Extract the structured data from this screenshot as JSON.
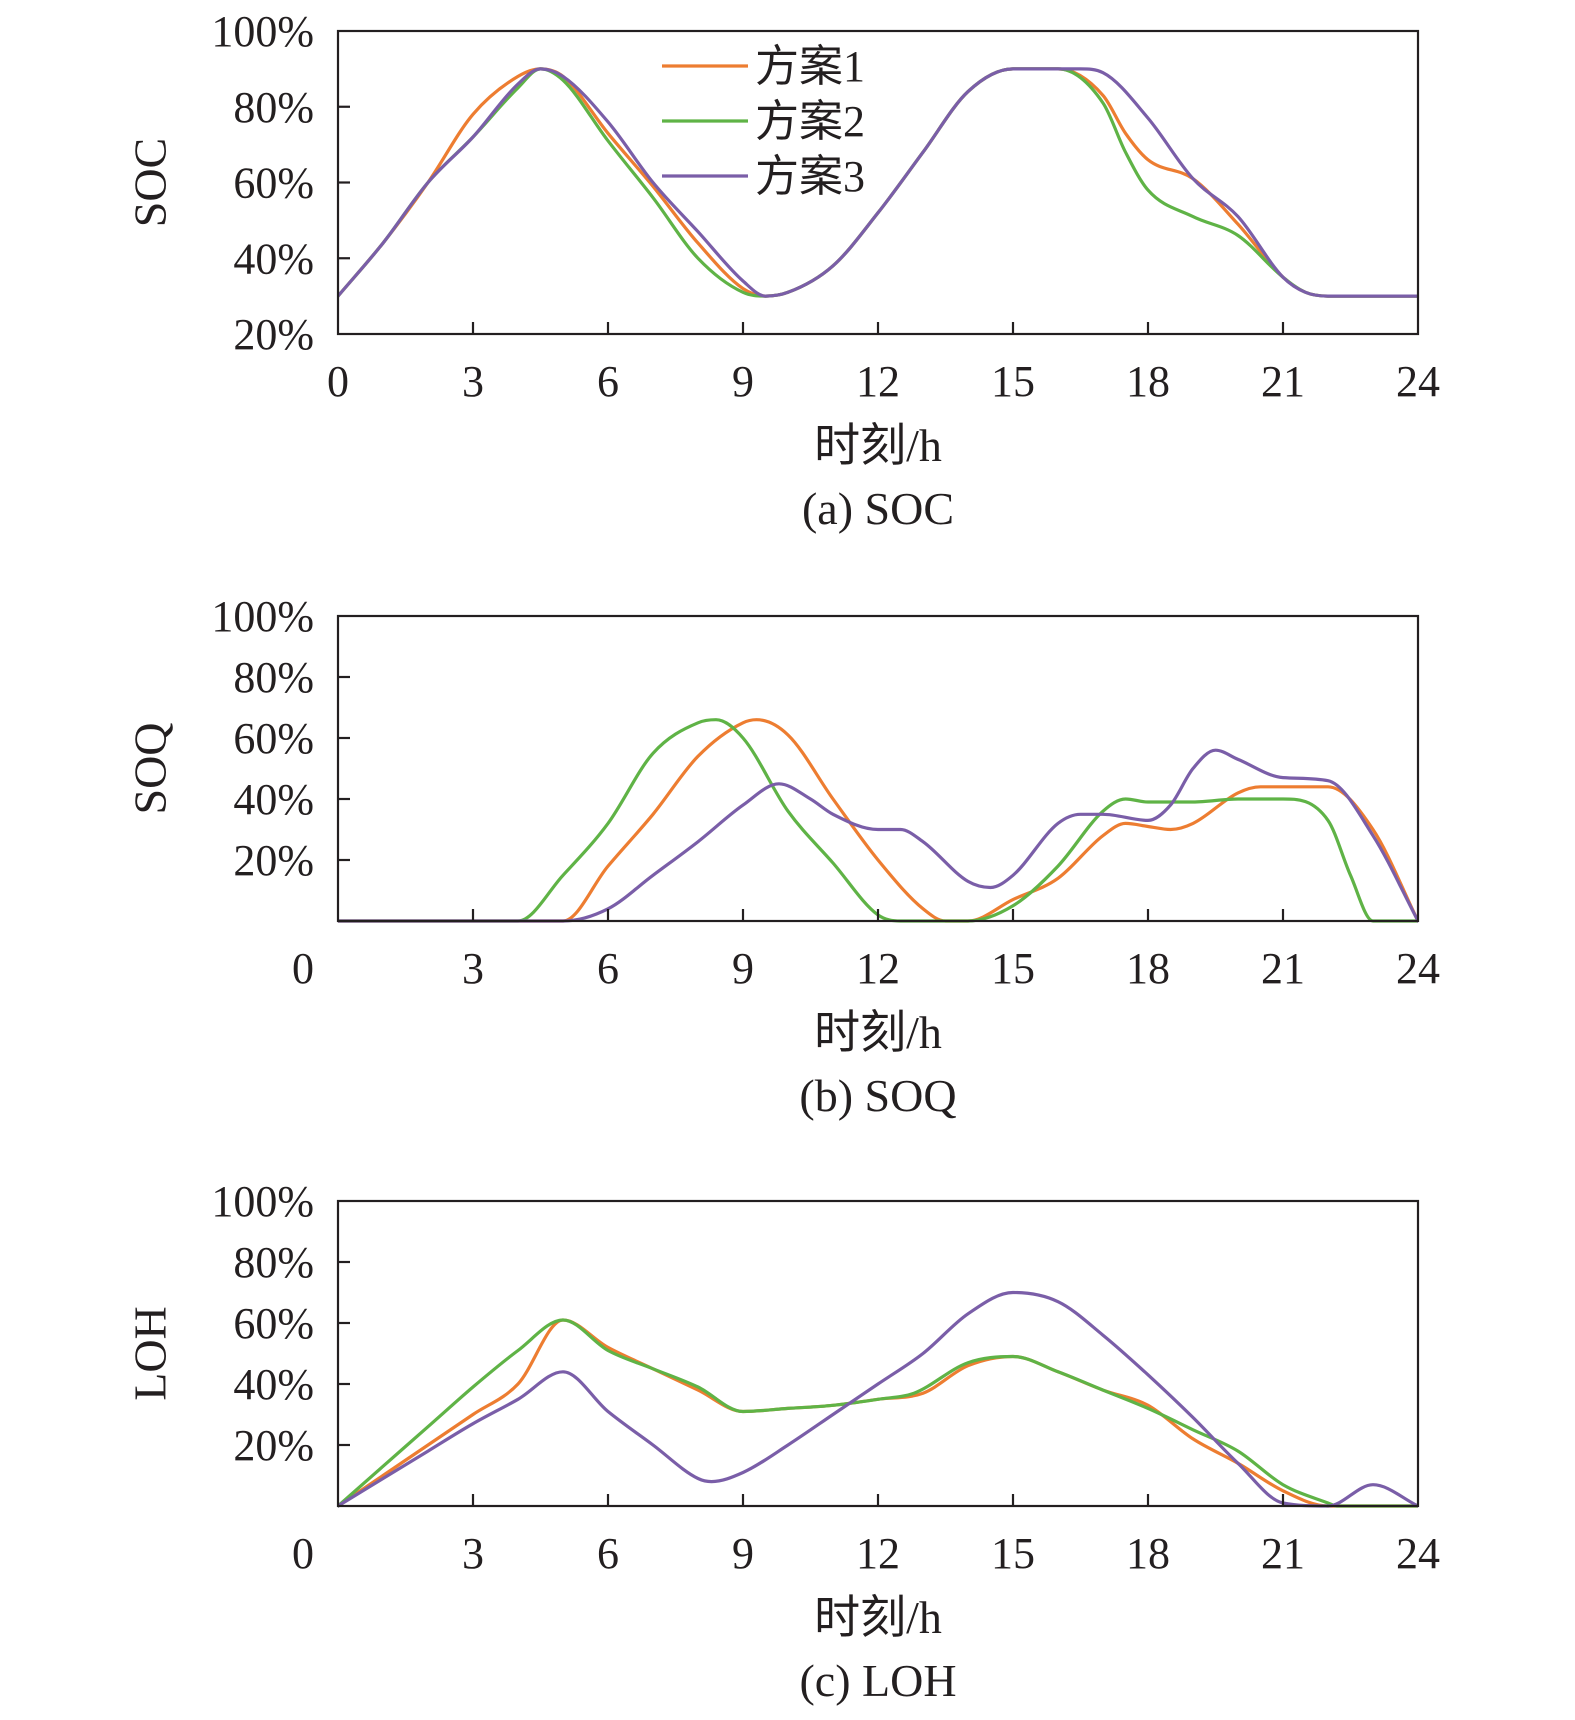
{
  "chart_data": [
    {
      "type": "line",
      "caption": "(a) SOC",
      "xlabel": "时刻/h",
      "ylabel": "SOC",
      "xlim": [
        0,
        24
      ],
      "ylim": [
        20,
        100
      ],
      "x_ticks": [
        "0",
        "3",
        "6",
        "9",
        "12",
        "15",
        "18",
        "21",
        "24"
      ],
      "y_ticks": [
        "20%",
        "40%",
        "60%",
        "80%",
        "100%"
      ],
      "legend": [
        "方案1",
        "方案2",
        "方案3"
      ],
      "legend_position": "top-center",
      "grid": false,
      "series": [
        {
          "name": "方案1",
          "color": "#ed7d31",
          "x": [
            0,
            1,
            2,
            3,
            4,
            4.5,
            5,
            6,
            7,
            8,
            9,
            9.5,
            10,
            11,
            12,
            13,
            14,
            15,
            16,
            17,
            17.5,
            18,
            19,
            20,
            21,
            21.5,
            22,
            23,
            24
          ],
          "values": [
            30,
            44,
            60,
            78,
            88,
            90,
            88,
            73,
            59,
            44,
            32,
            30,
            31,
            38,
            52,
            68,
            84,
            90,
            90,
            83,
            73,
            66,
            61,
            49,
            35,
            31,
            30,
            30,
            30
          ]
        },
        {
          "name": "方案2",
          "color": "#5fb346",
          "x": [
            0,
            1,
            2,
            3,
            4,
            4.5,
            5,
            6,
            7,
            8,
            9,
            9.5,
            10,
            11,
            12,
            13,
            14,
            15,
            16,
            17,
            17.5,
            18,
            19,
            20,
            21,
            21.5,
            22,
            23,
            24
          ],
          "values": [
            30,
            44,
            60,
            72,
            85,
            90,
            87,
            71,
            56,
            40,
            31,
            30,
            31,
            38,
            52,
            68,
            84,
            90,
            90,
            81,
            68,
            58,
            51,
            46,
            35,
            31,
            30,
            30,
            30
          ]
        },
        {
          "name": "方案3",
          "color": "#7a5ea8",
          "x": [
            0,
            1,
            2,
            3,
            4,
            4.5,
            5,
            6,
            7,
            8,
            9,
            9.5,
            10,
            11,
            12,
            13,
            14,
            15,
            16,
            16.5,
            17,
            18,
            19,
            20,
            21,
            21.5,
            22,
            23,
            24
          ],
          "values": [
            30,
            44,
            60,
            72,
            86,
            90,
            88,
            76,
            60,
            47,
            34,
            30,
            31,
            38,
            52,
            68,
            84,
            90,
            90,
            90,
            89,
            77,
            61,
            51,
            35,
            31,
            30,
            30,
            30
          ]
        }
      ]
    },
    {
      "type": "line",
      "caption": "(b) SOQ",
      "xlabel": "时刻/h",
      "ylabel": "SOQ",
      "xlim": [
        0,
        24
      ],
      "ylim": [
        0,
        100
      ],
      "x_ticks": [
        "0",
        "3",
        "6",
        "9",
        "12",
        "15",
        "18",
        "21",
        "24"
      ],
      "y_ticks": [
        "20%",
        "40%",
        "60%",
        "80%",
        "100%"
      ],
      "grid": false,
      "series": [
        {
          "name": "方案1",
          "color": "#ed7d31",
          "x": [
            0,
            3,
            4,
            5,
            6,
            7,
            8,
            9,
            9.3,
            10,
            11,
            12,
            13,
            13.5,
            14,
            15,
            16,
            17,
            17.5,
            18,
            18.5,
            19,
            20,
            20.5,
            21,
            22,
            23,
            24
          ],
          "values": [
            0,
            0,
            0,
            0,
            18,
            35,
            54,
            65,
            66,
            61,
            40,
            20,
            4,
            0,
            0,
            7,
            14,
            28,
            32,
            31,
            30,
            32,
            42,
            44,
            44,
            44,
            30,
            0
          ]
        },
        {
          "name": "方案2",
          "color": "#5fb346",
          "x": [
            0,
            2.5,
            4,
            5,
            6,
            7,
            8,
            8.4,
            9,
            10,
            11,
            12,
            12.5,
            13,
            14,
            15,
            16,
            17,
            17.5,
            18,
            19,
            20,
            21,
            22,
            22.5,
            23,
            24
          ],
          "values": [
            0,
            0,
            0,
            15,
            32,
            55,
            65,
            66,
            60,
            36,
            19,
            2,
            0,
            0,
            0,
            5,
            18,
            36,
            40,
            39,
            39,
            40,
            40,
            33,
            15,
            0,
            0
          ]
        },
        {
          "name": "方案3",
          "color": "#7a5ea8",
          "x": [
            0,
            5,
            6,
            7,
            8,
            9,
            9.8,
            10.5,
            11,
            12,
            12.5,
            13,
            14,
            14.5,
            15,
            16,
            16.5,
            17,
            18,
            18.5,
            19,
            19.5,
            20,
            21,
            22,
            23,
            24
          ],
          "values": [
            0,
            0,
            4,
            15,
            26,
            38,
            45,
            40,
            35,
            30,
            30,
            26,
            13,
            11,
            15,
            32,
            35,
            35,
            33,
            38,
            50,
            56,
            53,
            47,
            46,
            28,
            0
          ]
        }
      ]
    },
    {
      "type": "line",
      "caption": "(c) LOH",
      "xlabel": "时刻/h",
      "ylabel": "LOH",
      "xlim": [
        0,
        24
      ],
      "ylim": [
        0,
        100
      ],
      "x_ticks": [
        "0",
        "3",
        "6",
        "9",
        "12",
        "15",
        "18",
        "21",
        "24"
      ],
      "y_ticks": [
        "20%",
        "40%",
        "60%",
        "80%",
        "100%"
      ],
      "grid": false,
      "series": [
        {
          "name": "方案1",
          "color": "#ed7d31",
          "x": [
            0,
            1,
            2,
            3,
            4,
            5,
            6,
            7,
            8,
            9,
            10,
            11,
            12,
            13,
            14,
            15,
            16,
            17,
            18,
            19,
            20,
            21,
            22,
            23,
            24
          ],
          "values": [
            0,
            10,
            20,
            30,
            40,
            61,
            52,
            45,
            38,
            31,
            32,
            33,
            35,
            37,
            46,
            49,
            44,
            38,
            33,
            22,
            14,
            5,
            0,
            0,
            0
          ]
        },
        {
          "name": "方案2",
          "color": "#5fb346",
          "x": [
            0,
            1,
            2,
            3,
            4,
            5,
            6,
            7,
            8,
            9,
            10,
            11,
            12,
            12.8,
            14,
            15,
            16,
            17,
            18,
            19,
            20,
            21,
            22,
            22.2,
            23,
            24
          ],
          "values": [
            0,
            13,
            26,
            39,
            51,
            61,
            51,
            45,
            39,
            31,
            32,
            33,
            35,
            37,
            47,
            49,
            44,
            38,
            32,
            25,
            18,
            7,
            1,
            0,
            0,
            0
          ]
        },
        {
          "name": "方案3",
          "color": "#7a5ea8",
          "x": [
            0,
            1,
            2,
            3,
            4,
            5,
            6,
            7,
            8,
            8.3,
            9,
            10,
            11,
            12,
            13,
            14,
            15,
            16,
            17,
            18,
            19,
            20,
            21,
            22,
            23,
            24
          ],
          "values": [
            0,
            9,
            18,
            27,
            35,
            44,
            31,
            20,
            9,
            8,
            11,
            20,
            30,
            40,
            50,
            63,
            70,
            67,
            56,
            43,
            29,
            14,
            1,
            0,
            7,
            0
          ]
        }
      ]
    }
  ]
}
